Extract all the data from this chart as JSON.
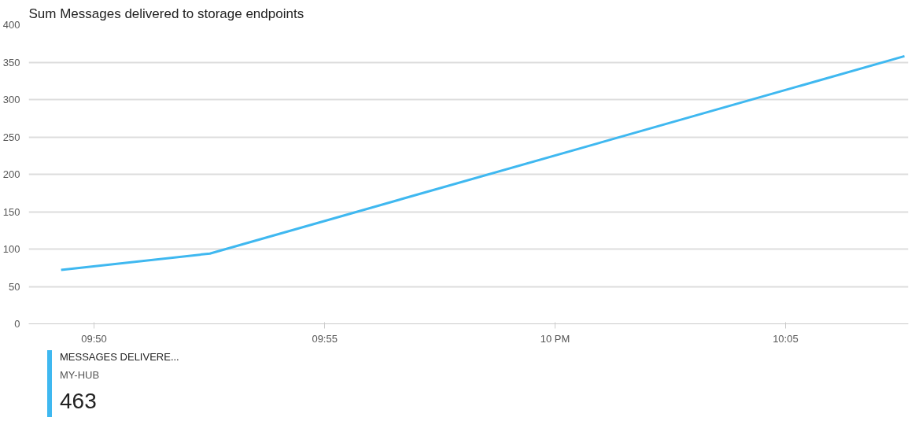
{
  "chart_data": {
    "type": "line",
    "title": "Sum Messages delivered to storage endpoints",
    "x": [
      9.8214,
      9.8752,
      10.1263
    ],
    "series": [
      {
        "name": "MESSAGES DELIVERE...",
        "color": "#3fb8f0",
        "values": [
          72,
          94,
          358
        ]
      }
    ],
    "xlim": [
      9.8097,
      10.1277
    ],
    "xticks": [
      {
        "value": 9.8333,
        "label": "09:50"
      },
      {
        "value": 9.9167,
        "label": "09:55"
      },
      {
        "value": 10,
        "label": "10 PM"
      },
      {
        "value": 10.0833,
        "label": "10:05"
      }
    ],
    "ylim": [
      0,
      400
    ],
    "yticks": [
      0,
      50,
      100,
      150,
      200,
      250,
      300,
      350,
      400
    ],
    "grid": "y",
    "legend": "bottom left",
    "marker": "none",
    "line_style": "solid",
    "annotations": [
      "MY-HUB",
      "463"
    ]
  }
}
